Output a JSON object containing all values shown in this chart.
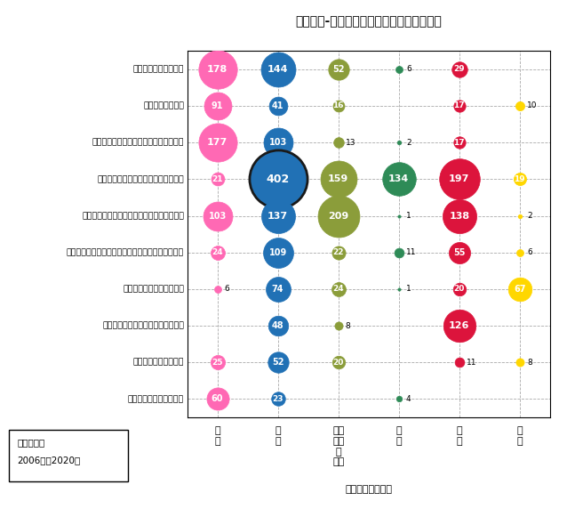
{
  "title": "出願人別-出願先国・地域別の特許出願件数",
  "x_labels": [
    "日\n本",
    "米\n国",
    "欧州\n（独\n除\nく）",
    "独\n国",
    "中\n国",
    "韓\n国"
  ],
  "companies": [
    "富士フイルム株式会社",
    "キヤノン株式会社",
    "キヤノンメディカルシステムズ株式会社",
    "シーメンスグループ（ドイツ、米国）",
    "コーニンクレッカフィリップス（オランダ）",
    "ジェネラル・エレクトリック・カンパニイ（米国）",
    "三星電子株式会社（韓国）",
    "上海联影医疗科技有限公司（中国）",
    "ハートフロー（米国）",
    "コニカミノルタ株式会社"
  ],
  "data": [
    [
      178,
      144,
      52,
      6,
      29,
      null
    ],
    [
      91,
      41,
      16,
      null,
      17,
      10
    ],
    [
      177,
      103,
      13,
      2,
      17,
      null
    ],
    [
      21,
      402,
      159,
      134,
      197,
      19
    ],
    [
      103,
      137,
      209,
      1,
      138,
      2
    ],
    [
      24,
      109,
      22,
      11,
      55,
      6
    ],
    [
      6,
      74,
      24,
      1,
      20,
      67
    ],
    [
      null,
      48,
      8,
      null,
      126,
      null
    ],
    [
      25,
      52,
      20,
      null,
      11,
      8
    ],
    [
      60,
      23,
      null,
      4,
      null,
      null
    ]
  ],
  "col_colors": [
    "#FF69B4",
    "#2171B5",
    "#8B9D3A",
    "#2E8B57",
    "#DC143C",
    "#FFD700"
  ],
  "small_dot_colors": [
    "#FF69B4",
    "#2171B5",
    "#8B9D3A",
    "#333333",
    "#DC143C",
    "#DAA520"
  ],
  "legend_text1": "優先権主張",
  "legend_text2": "2006年－2020年",
  "footnote": "出願先国（地域）",
  "max_val": 402,
  "max_bubble_pt": 2200
}
